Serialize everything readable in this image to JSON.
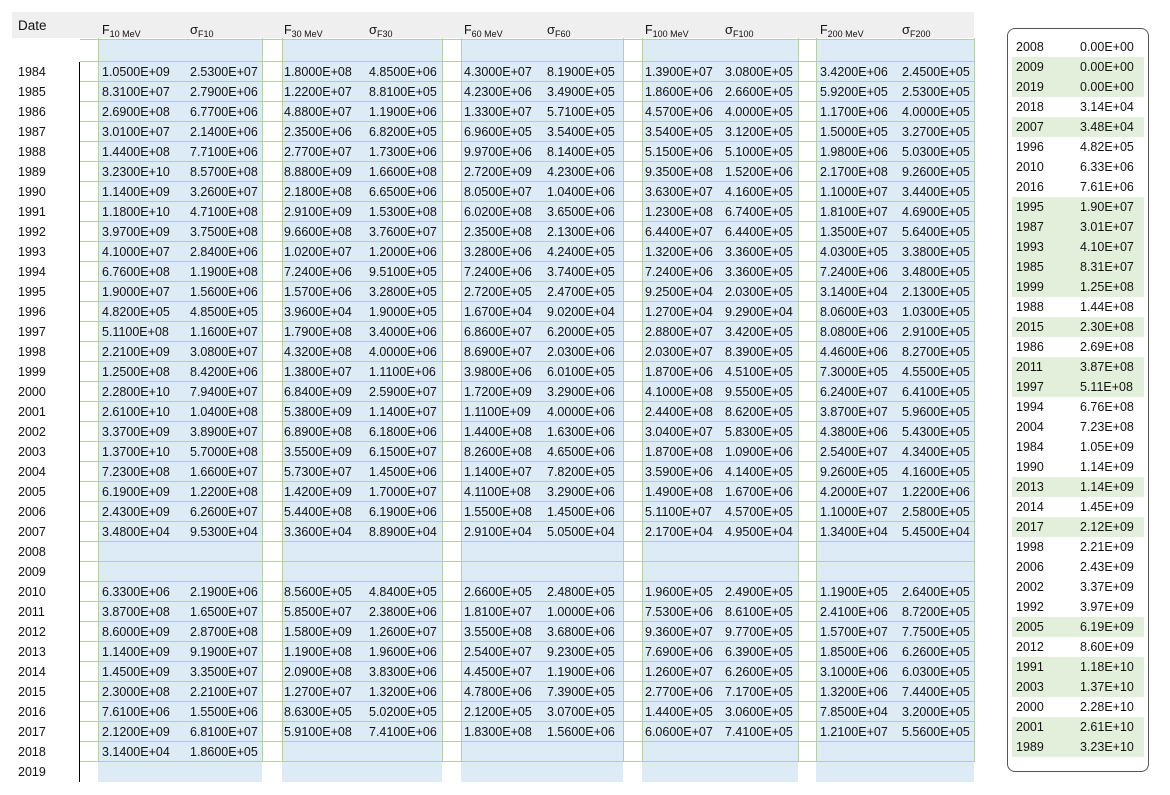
{
  "table": {
    "headers": [
      {
        "name": "date",
        "text": "Date"
      },
      {
        "name": "f10",
        "base": "F",
        "sub": "10 MeV"
      },
      {
        "name": "sf10",
        "base": "σ",
        "sub": "F10"
      },
      {
        "name": "f30",
        "base": "F",
        "sub": "30 MeV"
      },
      {
        "name": "sf30",
        "base": "σ",
        "sub": "F30"
      },
      {
        "name": "f60",
        "base": "F",
        "sub": "60 MeV"
      },
      {
        "name": "sf60",
        "base": "σ",
        "sub": "F60"
      },
      {
        "name": "f100",
        "base": "F",
        "sub": "100 MeV"
      },
      {
        "name": "sf100",
        "base": "σ",
        "sub": "F100"
      },
      {
        "name": "f200",
        "base": "F",
        "sub": "200 MeV"
      },
      {
        "name": "sf200",
        "base": "σ",
        "sub": "F200"
      }
    ],
    "rows": [
      [
        "1984",
        "1.0500E+09",
        "2.5300E+07",
        "1.8000E+08",
        "4.8500E+06",
        "4.3000E+07",
        "8.1900E+05",
        "1.3900E+07",
        "3.0800E+05",
        "3.4200E+06",
        "2.4500E+05"
      ],
      [
        "1985",
        "8.3100E+07",
        "2.7900E+06",
        "1.2200E+07",
        "8.8100E+05",
        "4.2300E+06",
        "3.4900E+05",
        "1.8600E+06",
        "2.6600E+05",
        "5.9200E+05",
        "2.5300E+05"
      ],
      [
        "1986",
        "2.6900E+08",
        "6.7700E+06",
        "4.8800E+07",
        "1.1900E+06",
        "1.3300E+07",
        "5.7100E+05",
        "4.5700E+06",
        "4.0000E+05",
        "1.1700E+06",
        "4.0000E+05"
      ],
      [
        "1987",
        "3.0100E+07",
        "2.1400E+06",
        "2.3500E+06",
        "6.8200E+05",
        "6.9600E+05",
        "3.5400E+05",
        "3.5400E+05",
        "3.1200E+05",
        "1.5000E+05",
        "3.2700E+05"
      ],
      [
        "1988",
        "1.4400E+08",
        "7.7100E+06",
        "2.7700E+07",
        "1.7300E+06",
        "9.9700E+06",
        "8.1400E+05",
        "5.1500E+06",
        "5.1000E+05",
        "1.9800E+06",
        "5.0300E+05"
      ],
      [
        "1989",
        "3.2300E+10",
        "8.5700E+08",
        "8.8800E+09",
        "1.6600E+08",
        "2.7200E+09",
        "4.2300E+06",
        "9.3500E+08",
        "1.5200E+06",
        "2.1700E+08",
        "9.2600E+05"
      ],
      [
        "1990",
        "1.1400E+09",
        "3.2600E+07",
        "2.1800E+08",
        "6.6500E+06",
        "8.0500E+07",
        "1.0400E+06",
        "3.6300E+07",
        "4.1600E+05",
        "1.1000E+07",
        "3.4400E+05"
      ],
      [
        "1991",
        "1.1800E+10",
        "4.7100E+08",
        "2.9100E+09",
        "1.5300E+08",
        "6.0200E+08",
        "3.6500E+06",
        "1.2300E+08",
        "6.7400E+05",
        "1.8100E+07",
        "4.6900E+05"
      ],
      [
        "1992",
        "3.9700E+09",
        "3.7500E+08",
        "9.6600E+08",
        "3.7600E+07",
        "2.3500E+08",
        "2.1300E+06",
        "6.4400E+07",
        "6.4400E+05",
        "1.3500E+07",
        "5.6400E+05"
      ],
      [
        "1993",
        "4.1000E+07",
        "2.8400E+06",
        "1.0200E+07",
        "1.2000E+06",
        "3.2800E+06",
        "4.2400E+05",
        "1.3200E+06",
        "3.3600E+05",
        "4.0300E+05",
        "3.3800E+05"
      ],
      [
        "1994",
        "6.7600E+08",
        "1.1900E+08",
        "7.2400E+06",
        "9.5100E+05",
        "7.2400E+06",
        "3.7400E+05",
        "7.2400E+06",
        "3.3600E+05",
        "7.2400E+06",
        "3.4800E+05"
      ],
      [
        "1995",
        "1.9000E+07",
        "1.5600E+06",
        "1.5700E+06",
        "3.2800E+05",
        "2.7200E+05",
        "2.4700E+05",
        "9.2500E+04",
        "2.0300E+05",
        "3.1400E+04",
        "2.1300E+05"
      ],
      [
        "1996",
        "4.8200E+05",
        "4.8500E+05",
        "3.9600E+04",
        "1.9000E+05",
        "1.6700E+04",
        "9.0200E+04",
        "1.2700E+04",
        "9.2900E+04",
        "8.0600E+03",
        "1.0300E+05"
      ],
      [
        "1997",
        "5.1100E+08",
        "1.1600E+07",
        "1.7900E+08",
        "3.4000E+06",
        "6.8600E+07",
        "6.2000E+05",
        "2.8800E+07",
        "3.4200E+05",
        "8.0800E+06",
        "2.9100E+05"
      ],
      [
        "1998",
        "2.2100E+09",
        "3.0800E+07",
        "4.3200E+08",
        "4.0000E+06",
        "8.6900E+07",
        "2.0300E+06",
        "2.0300E+07",
        "8.3900E+05",
        "4.4600E+06",
        "8.2700E+05"
      ],
      [
        "1999",
        "1.2500E+08",
        "8.4200E+06",
        "1.3800E+07",
        "1.1100E+06",
        "3.9800E+06",
        "6.0100E+05",
        "1.8700E+06",
        "4.5100E+05",
        "7.3000E+05",
        "4.5500E+05"
      ],
      [
        "2000",
        "2.2800E+10",
        "7.9400E+07",
        "6.8400E+09",
        "2.5900E+07",
        "1.7200E+09",
        "3.2900E+06",
        "4.1000E+08",
        "9.5500E+05",
        "6.2400E+07",
        "6.4100E+05"
      ],
      [
        "2001",
        "2.6100E+10",
        "1.0400E+08",
        "5.3800E+09",
        "1.1400E+07",
        "1.1100E+09",
        "4.0000E+06",
        "2.4400E+08",
        "8.6200E+05",
        "3.8700E+07",
        "5.9600E+05"
      ],
      [
        "2002",
        "3.3700E+09",
        "3.8900E+07",
        "6.8900E+08",
        "6.1800E+06",
        "1.4400E+08",
        "1.6300E+06",
        "3.0400E+07",
        "5.8300E+05",
        "4.3800E+06",
        "5.4300E+05"
      ],
      [
        "2003",
        "1.3700E+10",
        "5.7000E+08",
        "3.5500E+09",
        "6.1500E+07",
        "8.2600E+08",
        "4.6500E+06",
        "1.8700E+08",
        "1.0900E+06",
        "2.5400E+07",
        "4.3400E+05"
      ],
      [
        "2004",
        "7.2300E+08",
        "1.6600E+07",
        "5.7300E+07",
        "1.4500E+06",
        "1.1400E+07",
        "7.8200E+05",
        "3.5900E+06",
        "4.1400E+05",
        "9.2600E+05",
        "4.1600E+05"
      ],
      [
        "2005",
        "6.1900E+09",
        "1.2200E+08",
        "1.4200E+09",
        "1.7000E+07",
        "4.1100E+08",
        "3.2900E+06",
        "1.4900E+08",
        "1.6700E+06",
        "4.2000E+07",
        "1.2200E+06"
      ],
      [
        "2006",
        "2.4300E+09",
        "6.2600E+07",
        "5.4400E+08",
        "6.1900E+06",
        "1.5500E+08",
        "1.4500E+06",
        "5.1100E+07",
        "4.5700E+05",
        "1.1000E+07",
        "2.5800E+05"
      ],
      [
        "2007",
        "3.4800E+04",
        "9.5300E+04",
        "3.3600E+04",
        "8.8900E+04",
        "2.9100E+04",
        "5.0500E+04",
        "2.1700E+04",
        "4.9500E+04",
        "1.3400E+04",
        "5.4500E+04"
      ],
      [
        "2008",
        "",
        "",
        "",
        "",
        "",
        "",
        "",
        "",
        "",
        ""
      ],
      [
        "2009",
        "",
        "",
        "",
        "",
        "",
        "",
        "",
        "",
        "",
        ""
      ],
      [
        "2010",
        "6.3300E+06",
        "2.1900E+06",
        "8.5600E+05",
        "4.8400E+05",
        "2.6600E+05",
        "2.4800E+05",
        "1.9600E+05",
        "2.4900E+05",
        "1.1900E+05",
        "2.6400E+05"
      ],
      [
        "2011",
        "3.8700E+08",
        "1.6500E+07",
        "5.8500E+07",
        "2.3800E+06",
        "1.8100E+07",
        "1.0000E+06",
        "7.5300E+06",
        "8.6100E+05",
        "2.4100E+06",
        "8.7200E+05"
      ],
      [
        "2012",
        "8.6000E+09",
        "2.8700E+08",
        "1.5800E+09",
        "1.2600E+07",
        "3.5500E+08",
        "3.6800E+06",
        "9.3600E+07",
        "9.7700E+05",
        "1.5700E+07",
        "7.7500E+05"
      ],
      [
        "2013",
        "1.1400E+09",
        "9.1900E+07",
        "1.1900E+08",
        "1.9600E+06",
        "2.5400E+07",
        "9.2300E+05",
        "7.6900E+06",
        "6.3900E+05",
        "1.8500E+06",
        "6.2600E+05"
      ],
      [
        "2014",
        "1.4500E+09",
        "3.3500E+07",
        "2.0900E+08",
        "3.8300E+06",
        "4.4500E+07",
        "1.1900E+06",
        "1.2600E+07",
        "6.2600E+05",
        "3.1000E+06",
        "6.0300E+05"
      ],
      [
        "2015",
        "2.3000E+08",
        "2.2100E+07",
        "1.2700E+07",
        "1.3200E+06",
        "4.7800E+06",
        "7.3900E+05",
        "2.7700E+06",
        "7.1700E+05",
        "1.3200E+06",
        "7.4400E+05"
      ],
      [
        "2016",
        "7.6100E+06",
        "1.5500E+06",
        "8.6300E+05",
        "5.0200E+05",
        "2.1200E+05",
        "3.0700E+05",
        "1.4400E+05",
        "3.0600E+05",
        "7.8500E+04",
        "3.2000E+05"
      ],
      [
        "2017",
        "2.1200E+09",
        "6.8100E+07",
        "5.9100E+08",
        "7.4100E+06",
        "1.8300E+08",
        "1.5600E+06",
        "6.0600E+07",
        "7.4100E+05",
        "1.2100E+07",
        "5.5600E+05"
      ],
      [
        "2018",
        "3.1400E+04",
        "1.8600E+05",
        "",
        "",
        "",
        "",
        "",
        "",
        "",
        ""
      ],
      [
        "2019",
        "",
        "",
        "",
        "",
        "",
        "",
        "",
        "",
        "",
        ""
      ]
    ]
  },
  "sorted_panel": {
    "rows": [
      {
        "year": "2008",
        "value": "0.00E+00",
        "green": false
      },
      {
        "year": "2009",
        "value": "0.00E+00",
        "green": true
      },
      {
        "year": "2019",
        "value": "0.00E+00",
        "green": true
      },
      {
        "year": "2018",
        "value": "3.14E+04",
        "green": false
      },
      {
        "year": "2007",
        "value": "3.48E+04",
        "green": true
      },
      {
        "year": "1996",
        "value": "4.82E+05",
        "green": false
      },
      {
        "year": "2010",
        "value": "6.33E+06",
        "green": false
      },
      {
        "year": "2016",
        "value": "7.61E+06",
        "green": false
      },
      {
        "year": "1995",
        "value": "1.90E+07",
        "green": true
      },
      {
        "year": "1987",
        "value": "3.01E+07",
        "green": true
      },
      {
        "year": "1993",
        "value": "4.10E+07",
        "green": true
      },
      {
        "year": "1985",
        "value": "8.31E+07",
        "green": true
      },
      {
        "year": "1999",
        "value": "1.25E+08",
        "green": true
      },
      {
        "year": "1988",
        "value": "1.44E+08",
        "green": false
      },
      {
        "year": "2015",
        "value": "2.30E+08",
        "green": true
      },
      {
        "year": "1986",
        "value": "2.69E+08",
        "green": false
      },
      {
        "year": "2011",
        "value": "3.87E+08",
        "green": true
      },
      {
        "year": "1997",
        "value": "5.11E+08",
        "green": true
      },
      {
        "year": "1994",
        "value": "6.76E+08",
        "green": false
      },
      {
        "year": "2004",
        "value": "7.23E+08",
        "green": false
      },
      {
        "year": "1984",
        "value": "1.05E+09",
        "green": false
      },
      {
        "year": "1990",
        "value": "1.14E+09",
        "green": false
      },
      {
        "year": "2013",
        "value": "1.14E+09",
        "green": true
      },
      {
        "year": "2014",
        "value": "1.45E+09",
        "green": false
      },
      {
        "year": "2017",
        "value": "2.12E+09",
        "green": true
      },
      {
        "year": "1998",
        "value": "2.21E+09",
        "green": false
      },
      {
        "year": "2006",
        "value": "2.43E+09",
        "green": false
      },
      {
        "year": "2002",
        "value": "3.37E+09",
        "green": false
      },
      {
        "year": "1992",
        "value": "3.97E+09",
        "green": false
      },
      {
        "year": "2005",
        "value": "6.19E+09",
        "green": true
      },
      {
        "year": "2012",
        "value": "8.60E+09",
        "green": false
      },
      {
        "year": "1991",
        "value": "1.18E+10",
        "green": true
      },
      {
        "year": "2003",
        "value": "1.37E+10",
        "green": true
      },
      {
        "year": "2000",
        "value": "2.28E+10",
        "green": false
      },
      {
        "year": "2001",
        "value": "2.61E+10",
        "green": true
      },
      {
        "year": "1989",
        "value": "3.23E+10",
        "green": true
      }
    ]
  },
  "colors": {
    "stripe": "#ddebf7",
    "green": "#e2efda",
    "header": "#efefef",
    "grid": "#b7cfa6"
  }
}
